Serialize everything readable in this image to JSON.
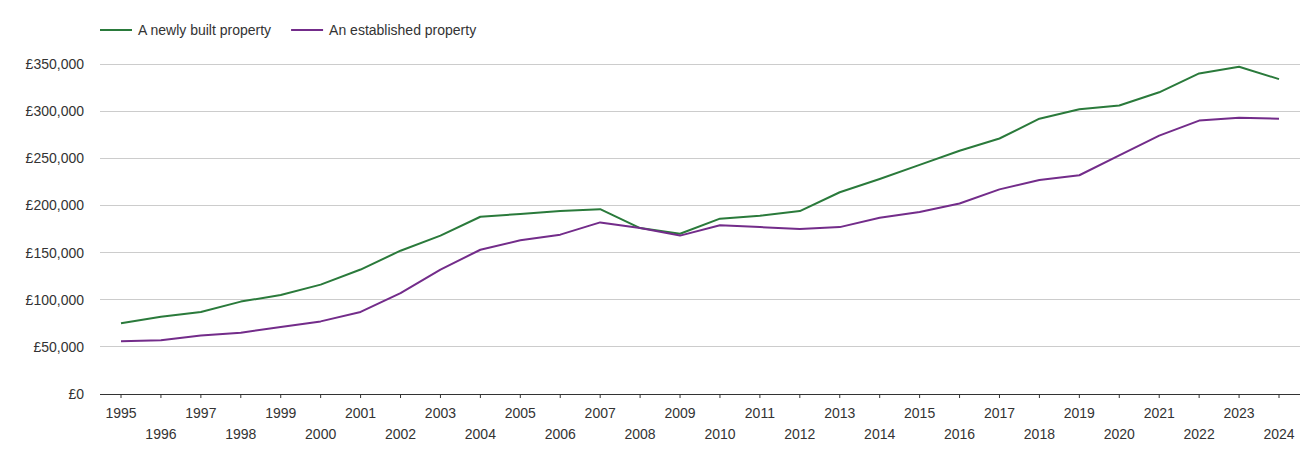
{
  "chart_data": {
    "type": "line",
    "x": [
      1995,
      1996,
      1997,
      1998,
      1999,
      2000,
      2001,
      2002,
      2003,
      2004,
      2005,
      2006,
      2007,
      2008,
      2009,
      2010,
      2011,
      2012,
      2013,
      2014,
      2015,
      2016,
      2017,
      2018,
      2019,
      2020,
      2021,
      2022,
      2023,
      2024
    ],
    "series": [
      {
        "name": "A newly built property",
        "color": "#2a7a3b",
        "values": [
          75000,
          82000,
          87000,
          98000,
          105000,
          116000,
          132000,
          152000,
          168000,
          188000,
          191000,
          194000,
          196000,
          176000,
          170000,
          186000,
          189000,
          194000,
          214000,
          228000,
          243000,
          258000,
          271000,
          292000,
          302000,
          306000,
          320000,
          340000,
          347000,
          334000
        ]
      },
      {
        "name": "An established property",
        "color": "#732c8a",
        "values": [
          56000,
          57000,
          62000,
          65000,
          71000,
          77000,
          87000,
          107000,
          132000,
          153000,
          163000,
          169000,
          182000,
          176000,
          168000,
          179000,
          177000,
          175000,
          177000,
          187000,
          193000,
          202000,
          217000,
          227000,
          232000,
          253000,
          274000,
          290000,
          293000,
          292000
        ]
      }
    ],
    "xlim": [
      1995,
      2024
    ],
    "xticks": [
      1995,
      1996,
      1997,
      1998,
      1999,
      2000,
      2001,
      2002,
      2003,
      2004,
      2005,
      2006,
      2007,
      2008,
      2009,
      2010,
      2011,
      2012,
      2013,
      2014,
      2015,
      2016,
      2017,
      2018,
      2019,
      2020,
      2021,
      2022,
      2023,
      2024
    ],
    "ylim": [
      0,
      350000
    ],
    "yticks": [
      {
        "value": 0,
        "label": "£0"
      },
      {
        "value": 50000,
        "label": "£50,000"
      },
      {
        "value": 100000,
        "label": "£100,000"
      },
      {
        "value": 150000,
        "label": "£150,000"
      },
      {
        "value": 200000,
        "label": "£200,000"
      },
      {
        "value": 250000,
        "label": "£250,000"
      },
      {
        "value": 300000,
        "label": "£300,000"
      },
      {
        "value": 350000,
        "label": "£350,000"
      }
    ],
    "grid": true,
    "legend": "top-left"
  }
}
